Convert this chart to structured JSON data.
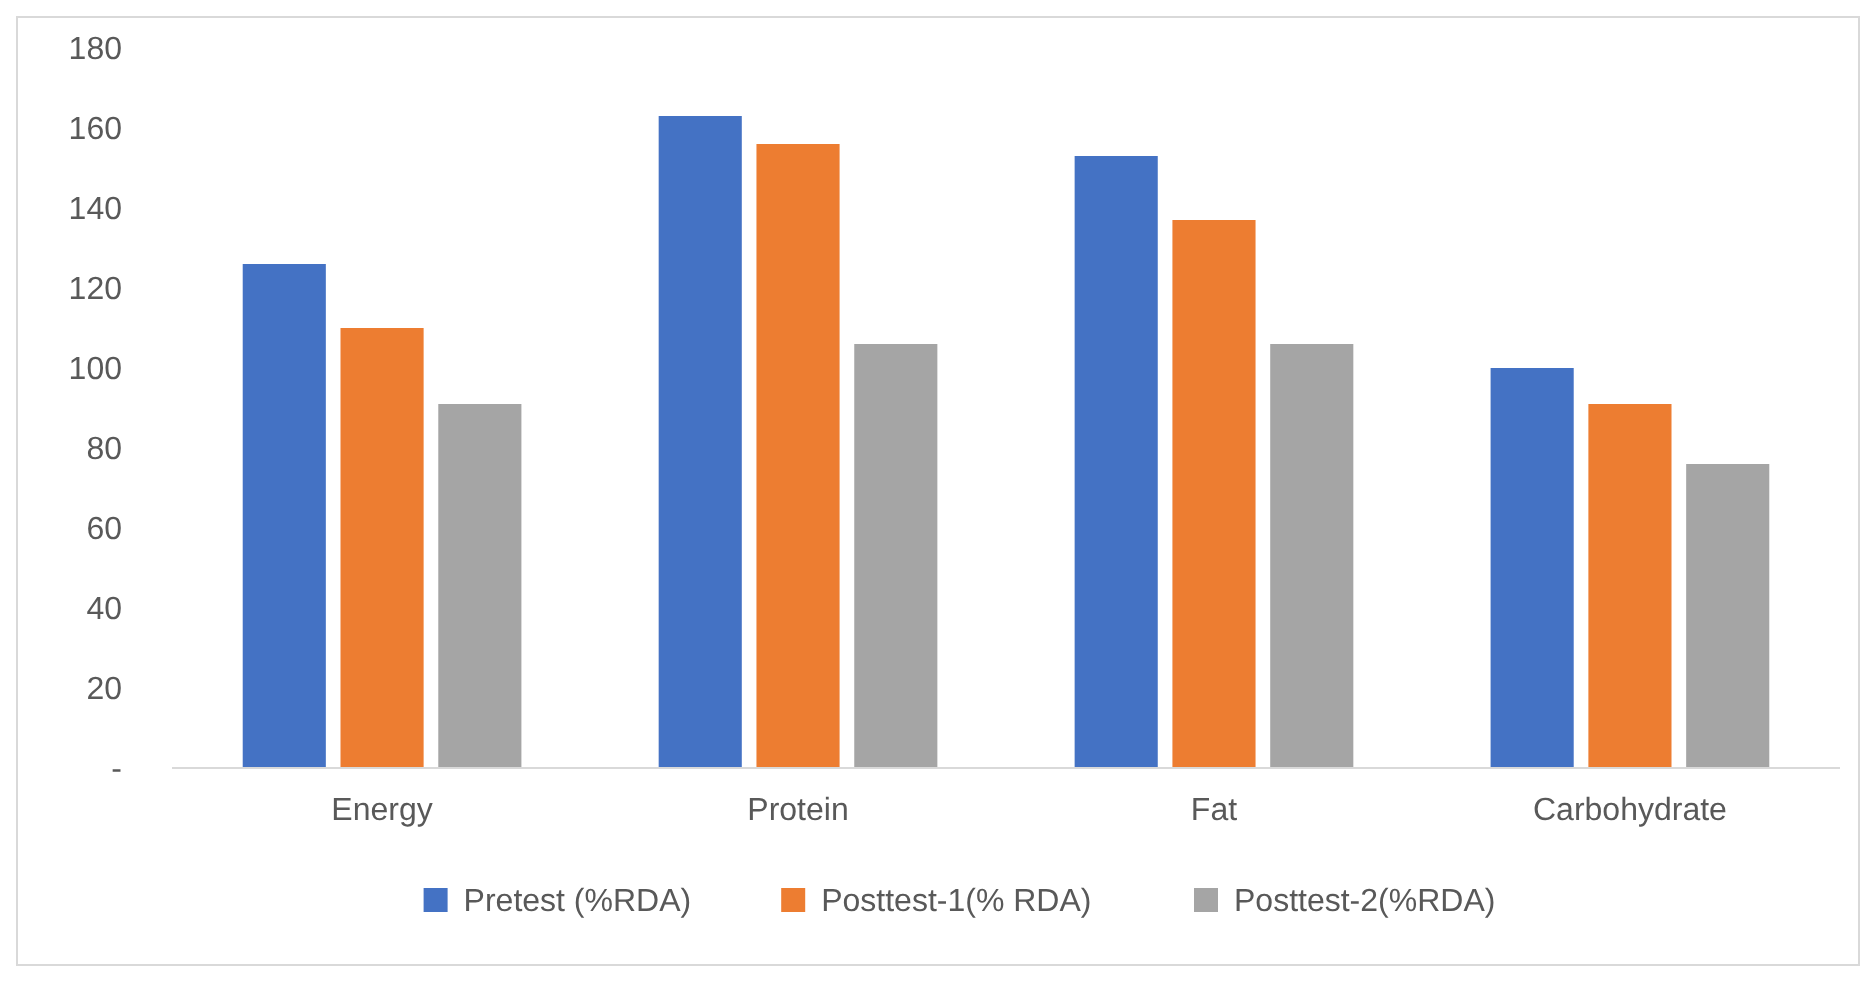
{
  "chart_data": {
    "type": "bar",
    "categories": [
      "Energy",
      "Protein",
      "Fat",
      "Carbohydrate"
    ],
    "series": [
      {
        "name": "Pretest (%RDA)",
        "color": "#4472c4",
        "values": [
          126,
          163,
          153,
          100
        ]
      },
      {
        "name": "Posttest-1(% RDA)",
        "color": "#ed7d31",
        "values": [
          110,
          156,
          137,
          91
        ]
      },
      {
        "name": "Posttest-2(%RDA)",
        "color": "#a5a5a5",
        "values": [
          91,
          106,
          106,
          76
        ]
      }
    ],
    "ylim": [
      0,
      180
    ],
    "yticks": [
      {
        "value": 0,
        "label": "-"
      },
      20,
      40,
      60,
      80,
      100,
      120,
      140,
      160,
      180
    ],
    "grid": false,
    "legend": "bottom"
  }
}
